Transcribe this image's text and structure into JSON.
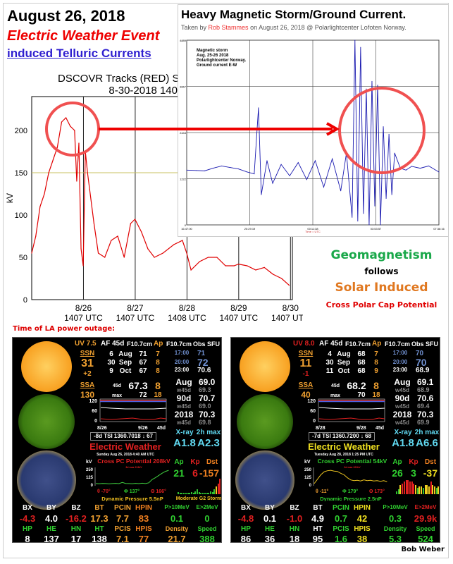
{
  "header": {
    "date": "August 26, 2018",
    "event": "Electric Weather Event",
    "induced": "induced Telluric Currents"
  },
  "dscovr": {
    "title_line1": "DSCOVR Tracks (RED) S",
    "title_line2": "8-30-2018 140"
  },
  "chart_data": [
    {
      "type": "line",
      "ylabel": "kV",
      "ylim": [
        0,
        240
      ],
      "yticks": [
        0,
        50,
        100,
        150,
        200
      ],
      "xticks": [
        {
          "label1": "8/26",
          "label2": "1407 UTC",
          "x": "2018-08-26T14:07"
        },
        {
          "label1": "8/27",
          "label2": "1407 UTC",
          "x": "2018-08-27T14:07"
        },
        {
          "label1": "8/28",
          "label2": "1408 UTC",
          "x": "2018-08-28T14:08"
        },
        {
          "label1": "8/29",
          "label2": "1407 UTC",
          "x": "2018-08-29T14:07"
        },
        {
          "label1": "8/30",
          "label2": "1407 UTC",
          "x": "2018-08-30T14:07"
        }
      ],
      "xlim": [
        "2018-08-25T14:07",
        "2018-08-30T15:00"
      ],
      "reference_line": 150,
      "series_color": "#e00000",
      "reference_color": "#c8c060",
      "x": [
        "2018-08-25T14:07",
        "2018-08-25T16:00",
        "2018-08-25T18:00",
        "2018-08-25T20:00",
        "2018-08-25T22:00",
        "2018-08-26T00:00",
        "2018-08-26T02:00",
        "2018-08-26T04:00",
        "2018-08-26T06:00",
        "2018-08-26T08:00",
        "2018-08-26T10:00",
        "2018-08-26T11:00",
        "2018-08-26T12:00",
        "2018-08-26T13:00",
        "2018-08-26T14:00",
        "2018-08-26T15:00",
        "2018-08-26T16:00",
        "2018-08-26T17:00",
        "2018-08-26T19:00",
        "2018-08-26T21:00",
        "2018-08-27T00:00",
        "2018-08-27T03:00",
        "2018-08-27T06:00",
        "2018-08-27T09:00",
        "2018-08-27T12:00",
        "2018-08-27T14:00",
        "2018-08-27T17:00",
        "2018-08-27T20:00",
        "2018-08-27T23:00",
        "2018-08-28T03:00",
        "2018-08-28T08:00",
        "2018-08-28T12:00",
        "2018-08-28T14:00",
        "2018-08-28T16:00",
        "2018-08-28T20:00",
        "2018-08-29T00:00",
        "2018-08-29T04:00",
        "2018-08-29T08:00",
        "2018-08-29T12:00",
        "2018-08-29T14:00",
        "2018-08-29T18:00",
        "2018-08-29T22:00",
        "2018-08-30T02:00",
        "2018-08-30T06:00",
        "2018-08-30T10:00",
        "2018-08-30T13:30"
      ],
      "y": [
        55,
        75,
        110,
        125,
        150,
        165,
        180,
        210,
        215,
        205,
        200,
        140,
        185,
        60,
        40,
        175,
        150,
        130,
        90,
        55,
        50,
        70,
        75,
        50,
        90,
        95,
        80,
        60,
        50,
        55,
        65,
        70,
        55,
        35,
        45,
        50,
        50,
        40,
        40,
        42,
        40,
        35,
        38,
        30,
        25,
        17
      ]
    },
    {
      "type": "line",
      "title": "Heavy Magnetic Storm/Ground Current.",
      "annotation": [
        "Magnetic storm",
        "Aug. 25-26 2018",
        "Polarlightcenter Norway.",
        "Ground current E-W"
      ],
      "xlabel": "Time = UTC",
      "yticks": [
        0,
        1222,
        2444,
        3667,
        4889
      ],
      "ylim": [
        0,
        4889
      ],
      "xticks": [
        "16:47:00",
        "20:29:19",
        "00:11:38",
        "03:53:57",
        "07:36:16"
      ],
      "series_color": "#1a1ab0",
      "x": [
        "16:47",
        "17:20",
        "17:50",
        "18:20",
        "18:50",
        "19:20",
        "19:50",
        "20:20",
        "20:45",
        "21:00",
        "21:10",
        "21:30",
        "21:50",
        "22:20",
        "22:50",
        "23:20",
        "23:50",
        "00:20",
        "00:50",
        "01:20",
        "01:50",
        "02:10",
        "02:30",
        "02:40",
        "02:50",
        "03:00",
        "03:10",
        "03:20",
        "03:30",
        "03:40",
        "03:50",
        "04:00",
        "04:10",
        "04:20",
        "04:30",
        "04:40",
        "04:50",
        "05:00",
        "05:20",
        "05:40",
        "06:00",
        "06:30",
        "07:00",
        "07:36"
      ],
      "y": [
        1450,
        1440,
        1430,
        1500,
        1560,
        1520,
        1480,
        1400,
        1350,
        3100,
        800,
        1700,
        1100,
        1600,
        1300,
        1650,
        1200,
        1700,
        1000,
        1750,
        900,
        1900,
        200,
        4889,
        100,
        4700,
        300,
        3600,
        0,
        3800,
        500,
        3700,
        0,
        2600,
        700,
        2400,
        800,
        1900,
        1500,
        1450,
        1550,
        1500,
        1560,
        1400
      ]
    }
  ],
  "inset": {
    "title": "Heavy Magnetic Storm/Ground Current.",
    "sub_prefix": "Taken by ",
    "sub_author": "Rob Stammes",
    "sub_suffix": " on August 26, 2018 @ Polarlightcenter Lofoten Norway."
  },
  "right_text": {
    "line1": "Geomagnetism",
    "line2": "follows",
    "line3": "Solar Induced",
    "line4": "Cross Polar Cap Potential",
    "color1": "#1aa84a",
    "color3": "#e07820",
    "color4": "#e00000"
  },
  "outage_label": "Time of LA power outage:",
  "credit": "Bob Weber",
  "panel_headers": {
    "af": "AF 45d",
    "f107": "F10.7cm",
    "ap": "Ap",
    "f107b": "F10.7cm",
    "obs": "Obs SFU",
    "ssn": "SSN",
    "ssa": "SSA",
    "row_45d": "45d",
    "row_max": "max",
    "xray": "X-ray",
    "xmax": "2h max",
    "kv": "kV",
    "apl": "Ap",
    "kpl": "Kp",
    "dstl": "Dst",
    "title": "Electric Weather",
    "tick250": "250",
    "tick125": "125",
    "tick0": "0",
    "t120": "120",
    "t60": "60",
    "t0": "0",
    "c45": "45d"
  },
  "panels": [
    {
      "uv": "UV 7.5",
      "uv_color": "#f0a030",
      "ssn": "31",
      "ssn_delta": "+2",
      "ssa": "130",
      "af_rows": [
        [
          "6",
          "Aug",
          "71",
          "7"
        ],
        [
          "30",
          "Sep",
          "67",
          "8"
        ],
        [
          "9",
          "Oct",
          "67",
          "8"
        ]
      ],
      "avg45": "67.3",
      "avg45_ap": "8",
      "max": "72",
      "max_ap": "18",
      "obs": [
        [
          "17:00",
          "71"
        ],
        [
          "20:00",
          "72"
        ],
        [
          "23:00",
          "70.6"
        ]
      ],
      "stats": [
        [
          "Aug",
          "69.0",
          "69.3"
        ],
        [
          "90d",
          "70.7",
          "69.0"
        ],
        [
          "2018",
          "70.3",
          "69.8"
        ]
      ],
      "w45d": "w45d",
      "mini_start": "8/26",
      "mini_mid": "9/26",
      "tsi": "-8d TSI   1360.7018  ↓ 67",
      "title_color": "#e02020",
      "date": "Sunday  Aug 26, 2018  4:40 AM UTC",
      "xray": "A1.8",
      "xmax": "A2.3",
      "cpc": "Cross PC Potential 208kV",
      "cpc_color": "#e02020",
      "cpc_max": "3d max 213kV",
      "angles": [
        [
          "θ -70°",
          "#e02020"
        ],
        [
          "Φ 137°",
          "#30d030"
        ],
        [
          "Θ 166°",
          "#e02020"
        ]
      ],
      "dyn": "Dynamic Pressure 5.5nP",
      "dyn_color": "#f0c020",
      "ap": "21",
      "kp": "6",
      "dst": "-157",
      "ap_c": "#30d030",
      "kp_c": "#e02020",
      "dst_c": "#f08020",
      "storm": "Moderate G2 Storm",
      "kp_bars": [
        0.15,
        0.1,
        0.1,
        0.1,
        0.1,
        0.1,
        0.1,
        0.15,
        0.1,
        0.2,
        0.3,
        0.15,
        0.1,
        0.1,
        0.1,
        0.1,
        0.1,
        0.2,
        0.15,
        0.3,
        0.5,
        0.7,
        1.0
      ],
      "cpc_trace": [
        30,
        28,
        31,
        30,
        27,
        30,
        32,
        29,
        45,
        31,
        30,
        28,
        33,
        29,
        35,
        30,
        40,
        85,
        110,
        140,
        170,
        195,
        210
      ],
      "row1": [
        [
          "BX",
          "-4.3",
          "#e02020"
        ],
        [
          "BY",
          "4.0",
          "#ffffff"
        ],
        [
          "BZ",
          "-16.2",
          "#e02020"
        ],
        [
          "BT",
          "17.3",
          "#f0a030"
        ],
        [
          "PCIN",
          "7.7",
          "#f0a030"
        ],
        [
          "HPIN",
          "83",
          "#f08020"
        ],
        [
          "P>10MeV",
          "0.1",
          "#30d030"
        ],
        [
          "E>2MeV",
          "0",
          "#30d030"
        ]
      ],
      "row1_label_colors": [
        "#fff",
        "#fff",
        "#fff",
        "#f0a030",
        "#f0a030",
        "#f08020",
        "#30d030",
        "#30d030"
      ],
      "row2": [
        [
          "HP",
          "8",
          "#ffffff"
        ],
        [
          "HE",
          "137",
          "#ffffff"
        ],
        [
          "HN",
          "17",
          "#ffffff"
        ],
        [
          "HT",
          "138",
          "#ffffff"
        ],
        [
          "PCIS",
          "7.1",
          "#f0a030"
        ],
        [
          "HPIS",
          "77",
          "#f08020"
        ],
        [
          "Density",
          "21.7",
          "#f0a030"
        ],
        [
          "Speed",
          "388",
          "#30d030"
        ]
      ],
      "row2_label_colors": [
        "#30d030",
        "#30d030",
        "#30d030",
        "#30d030",
        "#f0a030",
        "#f08020",
        "#f0a030",
        "#30d030"
      ]
    },
    {
      "uv": "UV 8.0",
      "uv_color": "#e02020",
      "ssn": "11",
      "ssn_delta": "-1",
      "ssa": "40",
      "af_rows": [
        [
          "4",
          "Aug",
          "68",
          "7"
        ],
        [
          "30",
          "Sep",
          "68",
          "8"
        ],
        [
          "11",
          "Oct",
          "68",
          "9"
        ]
      ],
      "avg45": "68.2",
      "avg45_ap": "8",
      "max": "70",
      "max_ap": "18",
      "obs": [
        [
          "17:00",
          "70"
        ],
        [
          "20:00",
          "70"
        ],
        [
          "23:00",
          "68.9"
        ]
      ],
      "stats": [
        [
          "Aug",
          "69.1",
          "68.9"
        ],
        [
          "90d",
          "70.6",
          "69.4"
        ],
        [
          "2018",
          "70.3",
          "69.9"
        ]
      ],
      "w45d": "w45d",
      "mini_start": "8/28",
      "mini_mid": "9/28",
      "tsi": "-7d TSI   1360.7200  ↓ 68",
      "title_color": "#f0e020",
      "date": "Tuesday  Aug 28, 2018  1:25 PM UTC",
      "xray": "A1.8",
      "xmax": "A6.6",
      "cpc": "Cross PC Potential 54kV",
      "cpc_color": "#30d030",
      "cpc_max": "3d max 221kV",
      "angles": [
        [
          "θ -11°",
          "#f0a030"
        ],
        [
          "Φ 179°",
          "#30d030"
        ],
        [
          "Θ 173°",
          "#e02020"
        ]
      ],
      "dyn": "Dynamic Pressure 2.5nP",
      "dyn_color": "#30d030",
      "ap": "26",
      "kp": "3",
      "dst": "-37",
      "ap_c": "#30d030",
      "kp_c": "#30d030",
      "dst_c": "#f0e020",
      "storm": "",
      "kp_bars": [
        0.2,
        0.3,
        0.6,
        0.7,
        0.8,
        0.9,
        0.9,
        0.8,
        0.8,
        0.7,
        0.6,
        0.4,
        0.5,
        0.5,
        0.4,
        0.6,
        0.6,
        0.5,
        0.8,
        0.6,
        0.5,
        0.4,
        0.5
      ],
      "cpc_trace": [
        30,
        90,
        150,
        190,
        205,
        210,
        200,
        195,
        170,
        150,
        110,
        80,
        70,
        75,
        65,
        80,
        70,
        75,
        65,
        70,
        60,
        70,
        55
      ],
      "row1": [
        [
          "BX",
          "-4.8",
          "#e02020"
        ],
        [
          "BY",
          "0.1",
          "#ffffff"
        ],
        [
          "BZ",
          "-1.0",
          "#e02020"
        ],
        [
          "BT",
          "4.9",
          "#ffffff"
        ],
        [
          "PCIN",
          "0.7",
          "#30d030"
        ],
        [
          "HPIN",
          "42",
          "#f0e020"
        ],
        [
          "P>10MeV",
          "0.3",
          "#30d030"
        ],
        [
          "E>2MeV",
          "29.9k",
          "#e02020"
        ]
      ],
      "row1_label_colors": [
        "#fff",
        "#fff",
        "#fff",
        "#fff",
        "#30d030",
        "#f0e020",
        "#30d030",
        "#e02020"
      ],
      "row2": [
        [
          "HP",
          "86",
          "#ffffff"
        ],
        [
          "HE",
          "36",
          "#ffffff"
        ],
        [
          "HN",
          "18",
          "#ffffff"
        ],
        [
          "HT",
          "95",
          "#ffffff"
        ],
        [
          "PCIS",
          "1.6",
          "#30d030"
        ],
        [
          "HPIS",
          "38",
          "#f0e020"
        ],
        [
          "Density",
          "5.3",
          "#30d030"
        ],
        [
          "Speed",
          "524",
          "#30d030"
        ]
      ],
      "row2_label_colors": [
        "#30d030",
        "#30d030",
        "#30d030",
        "#fff",
        "#30d030",
        "#f0e020",
        "#30d030",
        "#30d030"
      ]
    }
  ]
}
